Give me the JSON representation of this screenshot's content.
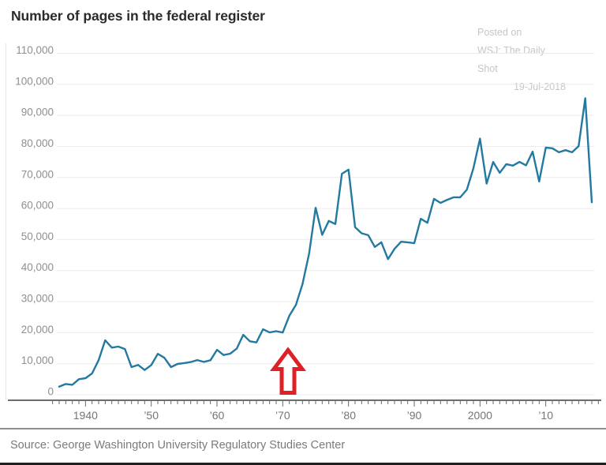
{
  "header": {
    "title": "Number of pages in the federal register",
    "posted_on": "Posted on",
    "posted_source": "WSJ: The Daily Shot",
    "posted_date": "19-Jul-2018"
  },
  "footer": {
    "source": "Source: George Washington University Regulatory Studies Center"
  },
  "colors": {
    "line": "#2379a0",
    "arrow_red": "#dd2127",
    "grid": "#ebebeb",
    "axis": "#3d3d3d",
    "tick": "#6a6a6a",
    "y_label": "#8f8f8f",
    "x_label": "#757575",
    "title": "#2b2b2b",
    "posted_note": "#c6c6c6",
    "source_text": "#7b7b7b"
  },
  "chart_data": {
    "type": "line",
    "title": "Number of pages in the federal register",
    "xlabel": "",
    "ylabel": "",
    "grid": "horizontal",
    "legend": false,
    "line_color": "#2379a0",
    "ylim": [
      0,
      110000
    ],
    "ytick_interval": 10000,
    "ytick_labels": [
      "0",
      "10,000",
      "20,000",
      "30,000",
      "40,000",
      "50,000",
      "60,000",
      "70,000",
      "80,000",
      "90,000",
      "100,000",
      "110,000"
    ],
    "xticks": [
      {
        "year": 1940,
        "label": "1940"
      },
      {
        "year": 1950,
        "label": "’50"
      },
      {
        "year": 1960,
        "label": "’60"
      },
      {
        "year": 1970,
        "label": "’70"
      },
      {
        "year": 1980,
        "label": "’80"
      },
      {
        "year": 1990,
        "label": "’90"
      },
      {
        "year": 2000,
        "label": "2000"
      },
      {
        "year": 2010,
        "label": "’10"
      }
    ],
    "minor_tick_start": 1935,
    "minor_tick_end": 2018,
    "annotation": {
      "shape": "up-arrow",
      "year": 1970.8,
      "color": "#dd2127",
      "meaning": "points at ~1970 level before the regulatory surge"
    },
    "years": [
      1936,
      1937,
      1938,
      1939,
      1940,
      1941,
      1942,
      1943,
      1944,
      1945,
      1946,
      1947,
      1948,
      1949,
      1950,
      1951,
      1952,
      1953,
      1954,
      1955,
      1956,
      1957,
      1958,
      1959,
      1960,
      1961,
      1962,
      1963,
      1964,
      1965,
      1966,
      1967,
      1968,
      1969,
      1970,
      1971,
      1972,
      1973,
      1974,
      1975,
      1976,
      1977,
      1978,
      1979,
      1980,
      1981,
      1982,
      1983,
      1984,
      1985,
      1986,
      1987,
      1988,
      1989,
      1990,
      1991,
      1992,
      1993,
      1994,
      1995,
      1996,
      1997,
      1998,
      1999,
      2000,
      2001,
      2002,
      2003,
      2004,
      2005,
      2006,
      2007,
      2008,
      2009,
      2010,
      2011,
      2012,
      2013,
      2014,
      2015,
      2016,
      2017
    ],
    "values": [
      2620,
      3450,
      3194,
      5007,
      5307,
      6877,
      11134,
      17553,
      15194,
      15508,
      14736,
      8902,
      9608,
      7952,
      9562,
      13175,
      11896,
      8912,
      9910,
      10196,
      10528,
      11156,
      10579,
      11116,
      14479,
      12792,
      13226,
      14842,
      19304,
      17206,
      16850,
      21088,
      20072,
      20466,
      20036,
      25447,
      28924,
      35592,
      45422,
      60221,
      51500,
      56000,
      55000,
      71200,
      72500,
      54000,
      52000,
      51400,
      47600,
      49100,
      43700,
      47000,
      49300,
      49100,
      48800,
      56700,
      55400,
      63100,
      61800,
      62800,
      63600,
      63600,
      66100,
      73000,
      82500,
      68000,
      75000,
      71500,
      74300,
      73800,
      75000,
      73900,
      78300,
      68700,
      79600,
      79400,
      78100,
      78800,
      78100,
      80100,
      95500,
      62000
    ]
  }
}
